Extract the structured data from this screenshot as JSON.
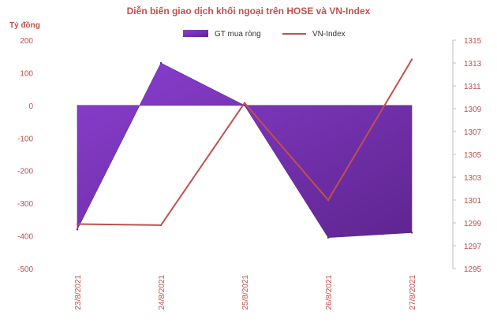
{
  "chart_data": {
    "type": "area",
    "title": "Diễn biến giao dịch khối ngoại trên HOSE và VN-Index",
    "ylabel_left": "Tỷ đồng",
    "categories": [
      "23/8/2021",
      "24/8/2021",
      "25/8/2021",
      "26/8/2021",
      "27/8/2021"
    ],
    "series": [
      {
        "name": "GT mua ròng",
        "type": "area",
        "axis": "left",
        "color": "#7030a0",
        "values": [
          -380,
          130,
          0,
          -405,
          -390
        ]
      },
      {
        "name": "VN-Index",
        "type": "line",
        "axis": "right",
        "color": "#c0504d",
        "values": [
          1298.9,
          1298.8,
          1309.5,
          1301.0,
          1313.3
        ]
      }
    ],
    "y_left": {
      "min": -500,
      "max": 200,
      "ticks": [
        "200",
        "100",
        "0",
        "-100",
        "-200",
        "-300",
        "-400",
        "-500"
      ]
    },
    "y_right": {
      "min": 1295,
      "max": 1315,
      "ticks": [
        "1315",
        "1313",
        "1311",
        "1309",
        "1307",
        "1305",
        "1303",
        "1301",
        "1299",
        "1297",
        "1295"
      ]
    },
    "legend_position": "top",
    "grid": false
  }
}
